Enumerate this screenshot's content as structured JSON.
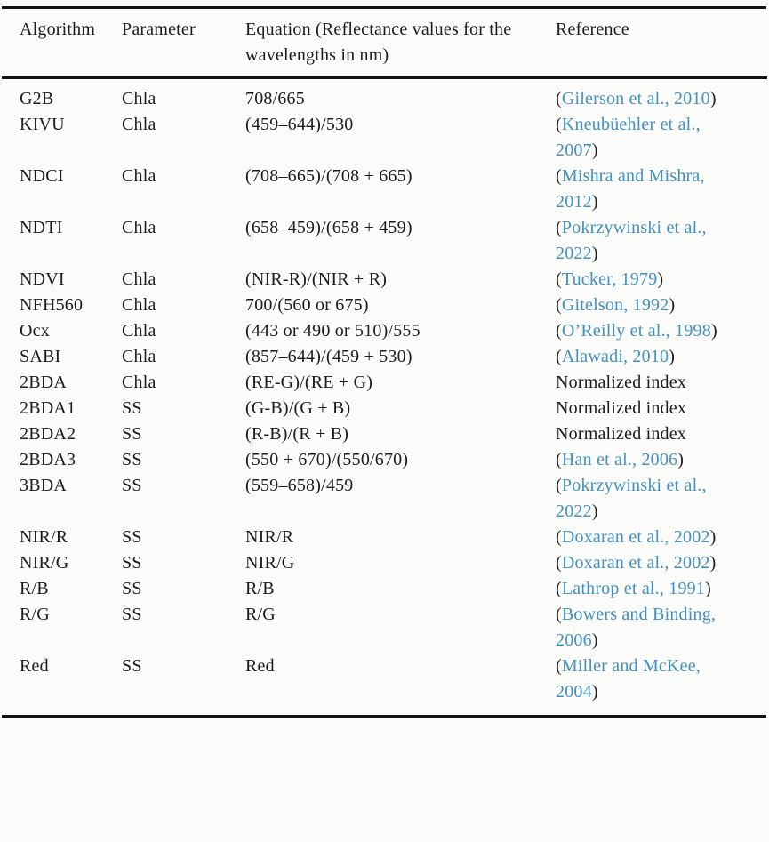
{
  "table": {
    "columns": [
      "Algorithm",
      "Parameter",
      "Equation (Reflectance values for the wavelengths in nm)",
      "Reference"
    ],
    "link_color": "#4090c2",
    "text_color": "#1c1c1c",
    "rows": [
      {
        "algorithm": "G2B",
        "parameter": "Chla",
        "equation": "708/665",
        "reference": {
          "type": "citation",
          "text": "Gilerson et al., 2010"
        }
      },
      {
        "algorithm": "KIVU",
        "parameter": "Chla",
        "equation": "(459–644)/530",
        "reference": {
          "type": "citation",
          "text": "Kneubüehler et al., 2007"
        }
      },
      {
        "algorithm": "NDCI",
        "parameter": "Chla",
        "equation": "(708–665)/(708 + 665)",
        "reference": {
          "type": "citation",
          "text": "Mishra and Mishra, 2012"
        }
      },
      {
        "algorithm": "NDTI",
        "parameter": "Chla",
        "equation": "(658–459)/(658 + 459)",
        "reference": {
          "type": "citation",
          "text": "Pokrzywinski et al., 2022"
        }
      },
      {
        "algorithm": "NDVI",
        "parameter": "Chla",
        "equation": "(NIR-R)/(NIR + R)",
        "reference": {
          "type": "citation",
          "text": "Tucker, 1979"
        }
      },
      {
        "algorithm": "NFH560",
        "parameter": "Chla",
        "equation": "700/(560 or 675)",
        "reference": {
          "type": "citation",
          "text": "Gitelson, 1992"
        }
      },
      {
        "algorithm": "Ocx",
        "parameter": "Chla",
        "equation": "(443 or 490 or 510)/555",
        "reference": {
          "type": "citation",
          "text": "O’Reilly et al., 1998"
        }
      },
      {
        "algorithm": "SABI",
        "parameter": "Chla",
        "equation": "(857–644)/(459 + 530)",
        "reference": {
          "type": "citation",
          "text": "Alawadi, 2010"
        }
      },
      {
        "algorithm": "2BDA",
        "parameter": "Chla",
        "equation": "(RE-G)/(RE + G)",
        "reference": {
          "type": "text",
          "text": "Normalized index"
        }
      },
      {
        "algorithm": "2BDA1",
        "parameter": "SS",
        "equation": "(G-B)/(G + B)",
        "reference": {
          "type": "text",
          "text": "Normalized index"
        }
      },
      {
        "algorithm": "2BDA2",
        "parameter": "SS",
        "equation": "(R-B)/(R + B)",
        "reference": {
          "type": "text",
          "text": "Normalized index"
        }
      },
      {
        "algorithm": "2BDA3",
        "parameter": "SS",
        "equation": "(550 + 670)/(550/670)",
        "reference": {
          "type": "citation",
          "text": "Han et al., 2006"
        }
      },
      {
        "algorithm": "3BDA",
        "parameter": "SS",
        "equation": "(559–658)/459",
        "reference": {
          "type": "citation",
          "text": "Pokrzywinski et al., 2022"
        }
      },
      {
        "algorithm": "NIR/R",
        "parameter": "SS",
        "equation": "NIR/R",
        "reference": {
          "type": "citation",
          "text": "Doxaran et al., 2002"
        }
      },
      {
        "algorithm": "NIR/G",
        "parameter": "SS",
        "equation": "NIR/G",
        "reference": {
          "type": "citation",
          "text": "Doxaran et al., 2002"
        }
      },
      {
        "algorithm": "R/B",
        "parameter": "SS",
        "equation": "R/B",
        "reference": {
          "type": "citation",
          "text": "Lathrop et al., 1991"
        }
      },
      {
        "algorithm": "R/G",
        "parameter": "SS",
        "equation": "R/G",
        "reference": {
          "type": "citation",
          "text": "Bowers and Binding, 2006"
        }
      },
      {
        "algorithm": "Red",
        "parameter": "SS",
        "equation": "Red",
        "reference": {
          "type": "citation",
          "text": "Miller and McKee, 2004"
        }
      }
    ]
  }
}
